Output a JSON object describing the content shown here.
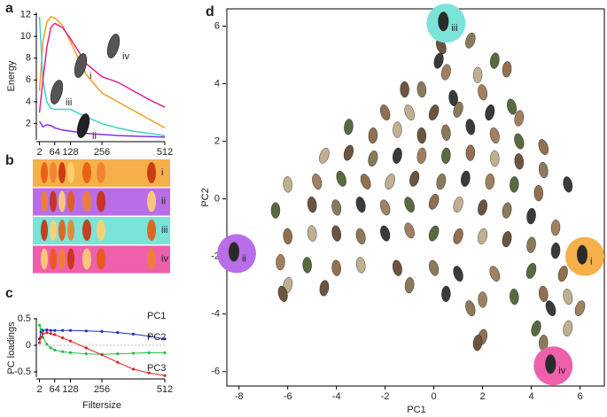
{
  "chart_data": [
    {
      "type": "line",
      "panel": "a",
      "ylabel": "Energy",
      "x": [
        2,
        16,
        32,
        48,
        64,
        96,
        128,
        192,
        256,
        320,
        384,
        448,
        512
      ],
      "xlim": [
        0,
        512
      ],
      "xticks": [
        2,
        64,
        128,
        256,
        512
      ],
      "ylim": [
        0.5,
        12.2
      ],
      "yticks": [
        2,
        4,
        6,
        8,
        10,
        12
      ],
      "series": [
        {
          "name": "i",
          "color": "#f0a020",
          "values": [
            5,
            9.5,
            11.3,
            11.8,
            11.7,
            11,
            9.5,
            6.5,
            4.8,
            4,
            3.2,
            2.4,
            1.6
          ]
        },
        {
          "name": "ii",
          "color": "#8a2be2",
          "values": [
            2.2,
            1.7,
            1.9,
            1.8,
            1.6,
            1.4,
            1.3,
            1.1,
            1.0,
            0.9,
            0.85,
            0.8,
            0.75
          ]
        },
        {
          "name": "iii",
          "color": "#40d0c8",
          "values": [
            11.8,
            6,
            4,
            3.4,
            3.3,
            3.3,
            3.3,
            2.6,
            2,
            1.6,
            1.3,
            1.1,
            0.9
          ]
        },
        {
          "name": "iv",
          "color": "#e0208a",
          "values": [
            3,
            6,
            9,
            10.8,
            11.2,
            10.8,
            9.8,
            7.5,
            6.3,
            5.8,
            5,
            4.2,
            3.5
          ]
        }
      ]
    },
    {
      "type": "line",
      "panel": "c",
      "ylabel": "PC loadings",
      "xlabel": "Filtersize",
      "markers": true,
      "x": [
        2,
        8,
        16,
        32,
        48,
        64,
        96,
        128,
        192,
        256,
        320,
        384,
        448,
        512
      ],
      "xlim": [
        0,
        512
      ],
      "xticks": [
        2,
        64,
        128,
        256,
        512
      ],
      "ylim": [
        -0.6,
        0.5
      ],
      "yticks": [
        -0.5,
        0,
        0.5
      ],
      "series": [
        {
          "name": "PC1",
          "color": "#2030c0",
          "values": [
            0.12,
            0.25,
            0.28,
            0.29,
            0.28,
            0.28,
            0.28,
            0.28,
            0.27,
            0.26,
            0.24,
            0.21,
            0.17,
            0.12
          ]
        },
        {
          "name": "PC2",
          "color": "#20c040",
          "values": [
            0.38,
            0.3,
            0.15,
            0.02,
            -0.05,
            -0.09,
            -0.12,
            -0.14,
            -0.16,
            -0.17,
            -0.16,
            -0.15,
            -0.14,
            -0.14
          ]
        },
        {
          "name": "PC3",
          "color": "#e02020",
          "values": [
            0.05,
            0.15,
            0.22,
            0.24,
            0.22,
            0.2,
            0.14,
            0.08,
            -0.05,
            -0.18,
            -0.32,
            -0.45,
            -0.52,
            -0.57
          ]
        }
      ]
    },
    {
      "type": "scatter",
      "panel": "d",
      "xlabel": "PC1",
      "ylabel": "PC2",
      "xlim": [
        -8.5,
        7
      ],
      "xticks": [
        -8,
        -6,
        -4,
        -2,
        0,
        2,
        4,
        6
      ],
      "ylim": [
        -6.5,
        6.6
      ],
      "yticks": [
        -6,
        -4,
        -2,
        0,
        2,
        4,
        6
      ],
      "colors": [
        "#6b5440",
        "#8a7a5a",
        "#3a3a3a",
        "#a08060",
        "#5a6a40",
        "#907050",
        "#c0b090"
      ],
      "x": [
        0.3,
        1.5,
        0.2,
        0.5,
        2.5,
        3,
        1.8,
        -1.2,
        -0.5,
        0.8,
        2,
        3.2,
        -2,
        -1,
        0,
        1,
        2.3,
        3.5,
        -3.5,
        -2.5,
        -1.5,
        -0.5,
        0.5,
        1.5,
        2.5,
        3.5,
        4.5,
        -4.5,
        -3.5,
        -2.5,
        -1.5,
        -0.5,
        0.5,
        1.5,
        2.5,
        3.5,
        4.5,
        5.5,
        -4.8,
        -3.8,
        -2.8,
        -1.8,
        -0.8,
        0.3,
        1.3,
        2.3,
        3.3,
        4.3,
        -6,
        -5,
        -4,
        -3,
        -2,
        -1,
        0,
        1,
        2,
        3,
        4,
        5,
        -6.5,
        -6,
        -5,
        -4,
        -3,
        -2,
        -1,
        0,
        1,
        2,
        3,
        4,
        5,
        -6.3,
        -5.2,
        -4,
        -3,
        -1.5,
        0,
        1,
        2.5,
        4,
        5.3,
        -6,
        -4.5,
        -1,
        0.5,
        2,
        3.3,
        4.5,
        5.5,
        -6.2,
        1.5,
        4.8,
        6,
        4.2,
        2,
        5.5,
        1.8,
        4.5
      ],
      "y": [
        5.3,
        5.5,
        4.8,
        4.4,
        4.8,
        4.5,
        4.3,
        3.8,
        3.8,
        3.5,
        3.7,
        3.2,
        3,
        3,
        3,
        3.1,
        3,
        2.8,
        2.5,
        2.2,
        2.4,
        2.2,
        2.3,
        2.5,
        2.2,
        2,
        1.8,
        1.5,
        1.6,
        1.4,
        1.5,
        1.5,
        1.5,
        1.6,
        1.4,
        1.3,
        1,
        0.5,
        0.6,
        0.7,
        0.6,
        0.6,
        0.7,
        0.6,
        0.7,
        0.6,
        0.5,
        0.2,
        0.5,
        -0.2,
        -0.3,
        -0.2,
        -0.3,
        -0.2,
        -0.1,
        -0.2,
        -0.3,
        -0.4,
        -0.6,
        -1,
        -0.4,
        -1.3,
        -1.2,
        -1.2,
        -1.3,
        -1.2,
        -1.1,
        -1.2,
        -1.3,
        -1.3,
        -1.4,
        -1.6,
        -1.8,
        -2.2,
        -2.3,
        -2.4,
        -2.3,
        -2.4,
        -2.4,
        -2.6,
        -2.6,
        -2.5,
        -2.6,
        -3,
        -3.1,
        -3,
        -3.3,
        -3.5,
        -3.4,
        -3.3,
        -3.4,
        -3.3,
        -3.8,
        -3.8,
        -3.8,
        -4.5,
        -4.8,
        -4.5,
        -5,
        -5
      ],
      "highlights": [
        {
          "label": "i",
          "x": 6.2,
          "y": -2.0,
          "color": "#f6b04a"
        },
        {
          "label": "ii",
          "x": -8.1,
          "y": -1.9,
          "color": "#b86ee8"
        },
        {
          "label": "iii",
          "x": 0.5,
          "y": 6.1,
          "color": "#7be3d8"
        },
        {
          "label": "iv",
          "x": 4.9,
          "y": -5.8,
          "color": "#ee5fac"
        }
      ]
    }
  ],
  "panel_b": {
    "panel": "b",
    "rows": [
      {
        "label": "i",
        "color": "#f6b04a"
      },
      {
        "label": "ii",
        "color": "#b86ee8"
      },
      {
        "label": "iii",
        "color": "#7be3d8"
      },
      {
        "label": "iv",
        "color": "#ee5fac"
      }
    ]
  }
}
